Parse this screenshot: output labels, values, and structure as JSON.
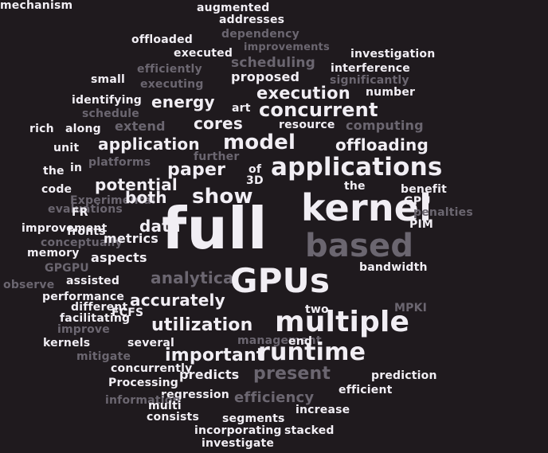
{
  "colors": {
    "background": "#1f1a1e",
    "bright": "#f1eef4",
    "dim": "#6b6670"
  },
  "words": [
    {
      "text": "augmented",
      "tone": "bright"
    },
    {
      "text": "addresses",
      "tone": "bright"
    },
    {
      "text": "dependency",
      "tone": "dim"
    },
    {
      "text": "offloaded",
      "tone": "bright"
    },
    {
      "text": "executed",
      "tone": "bright"
    },
    {
      "text": "improvements",
      "tone": "dim"
    },
    {
      "text": "investigation",
      "tone": "bright"
    },
    {
      "text": "scheduling",
      "tone": "dim"
    },
    {
      "text": "efficiently",
      "tone": "dim"
    },
    {
      "text": "interference",
      "tone": "bright"
    },
    {
      "text": "small",
      "tone": "bright"
    },
    {
      "text": "proposed",
      "tone": "bright"
    },
    {
      "text": "executing",
      "tone": "dim"
    },
    {
      "text": "significantly",
      "tone": "dim"
    },
    {
      "text": "number",
      "tone": "bright"
    },
    {
      "text": "identifying",
      "tone": "bright"
    },
    {
      "text": "energy",
      "tone": "bright"
    },
    {
      "text": "execution",
      "tone": "bright"
    },
    {
      "text": "art",
      "tone": "bright"
    },
    {
      "text": "concurrent",
      "tone": "bright"
    },
    {
      "text": "schedule",
      "tone": "dim"
    },
    {
      "text": "rich",
      "tone": "bright"
    },
    {
      "text": "along",
      "tone": "bright"
    },
    {
      "text": "extend",
      "tone": "dim"
    },
    {
      "text": "cores",
      "tone": "bright"
    },
    {
      "text": "resource",
      "tone": "bright"
    },
    {
      "text": "computing",
      "tone": "dim"
    },
    {
      "text": "unit",
      "tone": "bright"
    },
    {
      "text": "application",
      "tone": "bright"
    },
    {
      "text": "model",
      "tone": "bright"
    },
    {
      "text": "offloading",
      "tone": "bright"
    },
    {
      "text": "further",
      "tone": "dim"
    },
    {
      "text": "the",
      "tone": "bright"
    },
    {
      "text": "in",
      "tone": "bright"
    },
    {
      "text": "platforms",
      "tone": "dim"
    },
    {
      "text": "paper",
      "tone": "bright"
    },
    {
      "text": "of",
      "tone": "bright"
    },
    {
      "text": "applications",
      "tone": "bright"
    },
    {
      "text": "3D",
      "tone": "bright"
    },
    {
      "text": "potential",
      "tone": "bright"
    },
    {
      "text": "code",
      "tone": "bright"
    },
    {
      "text": "the",
      "tone": "bright"
    },
    {
      "text": "benefit",
      "tone": "bright"
    },
    {
      "text": "Experimental",
      "tone": "dim"
    },
    {
      "text": "both",
      "tone": "bright"
    },
    {
      "text": "show",
      "tone": "bright"
    },
    {
      "text": "kernel",
      "tone": "bright"
    },
    {
      "text": "GPU",
      "tone": "bright"
    },
    {
      "text": "evaluations",
      "tone": "dim"
    },
    {
      "text": "FR",
      "tone": "bright"
    },
    {
      "text": "penalties",
      "tone": "dim"
    },
    {
      "text": "improvement",
      "tone": "bright"
    },
    {
      "text": "fronts",
      "tone": "bright"
    },
    {
      "text": "data",
      "tone": "bright"
    },
    {
      "text": "full",
      "tone": "bright"
    },
    {
      "text": "PIM",
      "tone": "bright"
    },
    {
      "text": "conceptually",
      "tone": "dim"
    },
    {
      "text": "metrics",
      "tone": "bright"
    },
    {
      "text": "based",
      "tone": "dim"
    },
    {
      "text": "memory",
      "tone": "bright"
    },
    {
      "text": "aspects",
      "tone": "bright"
    },
    {
      "text": "GPGPU",
      "tone": "dim"
    },
    {
      "text": "bandwidth",
      "tone": "bright"
    },
    {
      "text": "observe",
      "tone": "dim"
    },
    {
      "text": "assisted",
      "tone": "bright"
    },
    {
      "text": "analytical",
      "tone": "dim"
    },
    {
      "text": "GPUs",
      "tone": "bright"
    },
    {
      "text": "performance",
      "tone": "bright"
    },
    {
      "text": "accurately",
      "tone": "bright"
    },
    {
      "text": "different",
      "tone": "bright"
    },
    {
      "text": "two",
      "tone": "bright"
    },
    {
      "text": "MPKI",
      "tone": "dim"
    },
    {
      "text": "facilitating",
      "tone": "bright"
    },
    {
      "text": "FCFS",
      "tone": "bright"
    },
    {
      "text": "improve",
      "tone": "dim"
    },
    {
      "text": "utilization",
      "tone": "bright"
    },
    {
      "text": "multiple",
      "tone": "bright"
    },
    {
      "text": "kernels",
      "tone": "bright"
    },
    {
      "text": "several",
      "tone": "bright"
    },
    {
      "text": "management",
      "tone": "dim"
    },
    {
      "text": "end",
      "tone": "bright"
    },
    {
      "text": "mitigate",
      "tone": "dim"
    },
    {
      "text": "important",
      "tone": "bright"
    },
    {
      "text": "runtime",
      "tone": "bright"
    },
    {
      "text": "concurrently",
      "tone": "bright"
    },
    {
      "text": "predicts",
      "tone": "bright"
    },
    {
      "text": "present",
      "tone": "dim"
    },
    {
      "text": "prediction",
      "tone": "bright"
    },
    {
      "text": "Processing",
      "tone": "bright"
    },
    {
      "text": "efficient",
      "tone": "bright"
    },
    {
      "text": "regression",
      "tone": "bright"
    },
    {
      "text": "efficiency",
      "tone": "dim"
    },
    {
      "text": "information",
      "tone": "dim"
    },
    {
      "text": "multi",
      "tone": "bright"
    },
    {
      "text": "increase",
      "tone": "bright"
    },
    {
      "text": "consists",
      "tone": "bright"
    },
    {
      "text": "segments",
      "tone": "bright"
    },
    {
      "text": "incorporating",
      "tone": "bright"
    },
    {
      "text": "stacked",
      "tone": "bright"
    },
    {
      "text": "investigate",
      "tone": "bright"
    },
    {
      "text": "mechanism",
      "tone": "bright"
    }
  ]
}
